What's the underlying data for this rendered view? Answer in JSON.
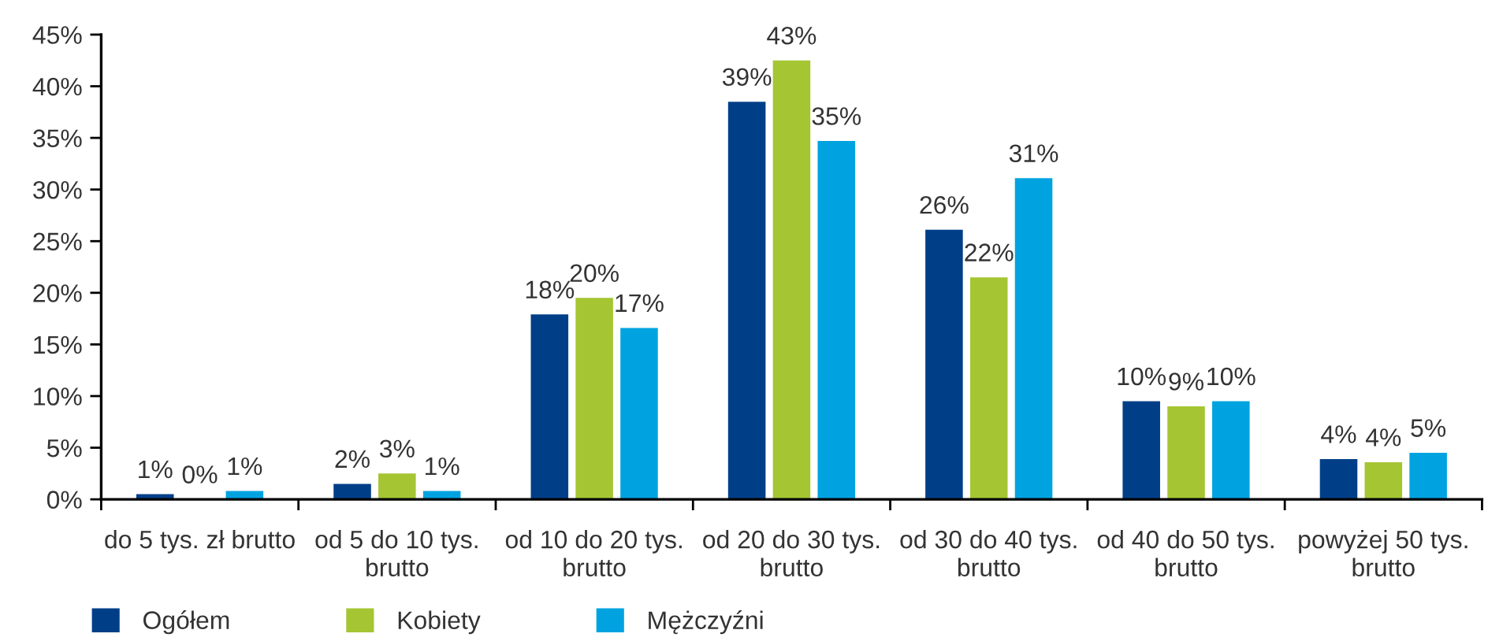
{
  "chart_data": {
    "type": "bar",
    "categories": [
      "do 5 tys. zł brutto",
      "od 5 do 10 tys. brutto",
      "od 10 do 20 tys. brutto",
      "od 20 do 30 tys. brutto",
      "od 30 do 40 tys. brutto",
      "od 40 do 50 tys. brutto",
      "powyżej 50 tys. brutto"
    ],
    "series": [
      {
        "name": "Ogółem",
        "color": "#003f87",
        "values": [
          0.5,
          1.5,
          17.9,
          38.5,
          26.1,
          9.5,
          3.9
        ],
        "value_labels": [
          "1%",
          "2%",
          "18%",
          "39%",
          "26%",
          "10%",
          "4%"
        ]
      },
      {
        "name": "Kobiety",
        "color": "#a5c533",
        "values": [
          0,
          2.5,
          19.5,
          42.5,
          21.5,
          9.0,
          3.6
        ],
        "value_labels": [
          "0%",
          "3%",
          "20%",
          "43%",
          "22%",
          "9%",
          "4%"
        ]
      },
      {
        "name": "Mężczyźni",
        "color": "#00a3e0",
        "values": [
          0.8,
          0.8,
          16.6,
          34.7,
          31.1,
          9.5,
          4.5
        ],
        "value_labels": [
          "1%",
          "1%",
          "17%",
          "35%",
          "31%",
          "10%",
          "5%"
        ]
      }
    ],
    "ylim": [
      0,
      45
    ],
    "yticks": [
      {
        "value": 0,
        "label": "0%"
      },
      {
        "value": 5,
        "label": "5%"
      },
      {
        "value": 10,
        "label": "10%"
      },
      {
        "value": 15,
        "label": "15%"
      },
      {
        "value": 20,
        "label": "20%"
      },
      {
        "value": 25,
        "label": "25%"
      },
      {
        "value": 30,
        "label": "30%"
      },
      {
        "value": 35,
        "label": "35%"
      },
      {
        "value": 40,
        "label": "40%"
      },
      {
        "value": 45,
        "label": "45%"
      }
    ],
    "legend": "bottom"
  }
}
